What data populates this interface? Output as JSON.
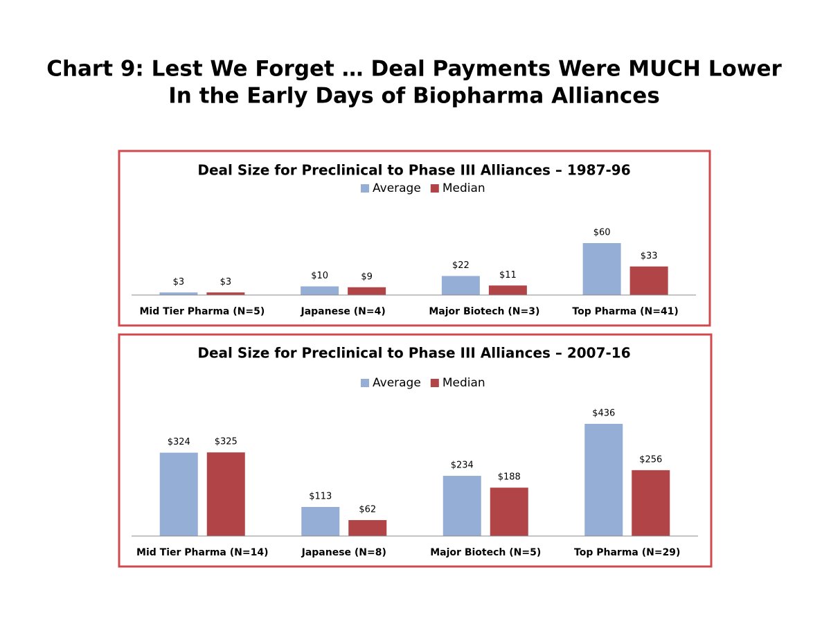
{
  "header": {
    "title": [
      "Chart 9:  Lest We Forget … Deal Payments Were MUCH Lower",
      "In the Early Days of Biopharma Alliances"
    ]
  },
  "chart_data": [
    {
      "type": "bar",
      "title": "Deal Size for Preclinical to Phase III Alliances – 1987-96",
      "categories": [
        "Mid Tier Pharma (N=5)",
        "Japanese (N=4)",
        "Major Biotech (N=3)",
        "Top Pharma (N=41)"
      ],
      "series": [
        {
          "name": "Average",
          "color": "#95aed6",
          "values": [
            3,
            10,
            22,
            60
          ],
          "value_labels": [
            "$3",
            "$10",
            "$22",
            "$60"
          ]
        },
        {
          "name": "Median",
          "color": "#b04446",
          "values": [
            3,
            9,
            11,
            33
          ],
          "value_labels": [
            "$3",
            "$9",
            "$11",
            "$33"
          ]
        }
      ]
    },
    {
      "type": "bar",
      "title": "Deal Size for Preclinical to Phase III Alliances – 2007-16",
      "categories": [
        "Mid Tier Pharma (N=14)",
        "Japanese (N=8)",
        "Major Biotech (N=5)",
        "Top Pharma (N=29)"
      ],
      "series": [
        {
          "name": "Average",
          "color": "#95aed6",
          "values": [
            324,
            113,
            234,
            436
          ],
          "value_labels": [
            "$324",
            "$113",
            "$234",
            "$436"
          ]
        },
        {
          "name": "Median",
          "color": "#b04446",
          "values": [
            325,
            62,
            188,
            256
          ],
          "value_labels": [
            "$325",
            "$62",
            "$188",
            "$256"
          ]
        }
      ]
    }
  ]
}
